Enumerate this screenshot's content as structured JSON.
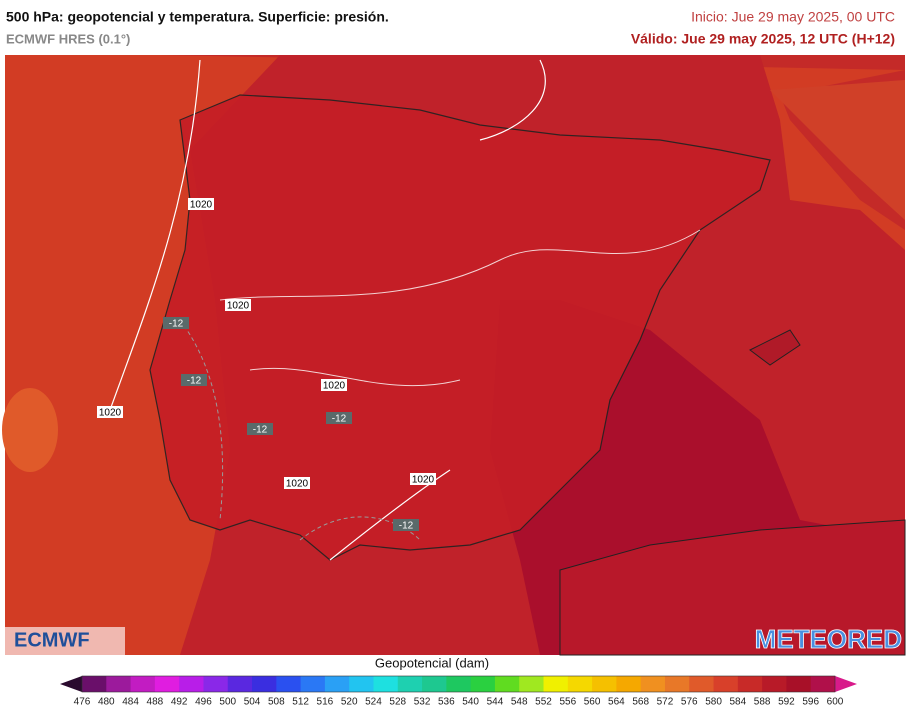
{
  "header": {
    "title": "500 hPa: geopotencial y temperatura. Superficie: presión.",
    "model": "ECMWF HRES (0.1°)",
    "init": "Inicio: Jue 29 may 2025, 00 UTC",
    "valid": "Válido: Jue 29 may 2025, 12 UTC (H+12)"
  },
  "map": {
    "labels": [
      "1020",
      "1020",
      "1020",
      "1020",
      "1020",
      "1020",
      "-12",
      "-12",
      "-12",
      "-12",
      "-12"
    ]
  },
  "logos": {
    "left": "ECMWF",
    "right": "METEORED"
  },
  "colorbar": {
    "label": "Geopotencial (dam)",
    "ticks": [
      476,
      480,
      484,
      488,
      492,
      496,
      500,
      504,
      508,
      512,
      516,
      520,
      524,
      528,
      532,
      536,
      540,
      544,
      548,
      552,
      556,
      560,
      564,
      568,
      572,
      576,
      580,
      584,
      588,
      592,
      596,
      600
    ],
    "colors": [
      "#2a0a2e",
      "#6a0f6a",
      "#9c1a9c",
      "#c21cc2",
      "#e01de0",
      "#b81ee8",
      "#8a28e8",
      "#5a28e0",
      "#3a2ee0",
      "#2a50f0",
      "#2a78f5",
      "#2aa0f5",
      "#22c4f0",
      "#1ee0e0",
      "#1ed0b0",
      "#1ec890",
      "#1ec860",
      "#2ad040",
      "#60dc20",
      "#a0e820",
      "#f0f000",
      "#f5d800",
      "#f5c000",
      "#f5a800",
      "#f09020",
      "#e87828",
      "#e05a2a",
      "#d8402a",
      "#c82a28",
      "#b81a28",
      "#a81028",
      "#b0104a",
      "#d81a8a"
    ]
  }
}
